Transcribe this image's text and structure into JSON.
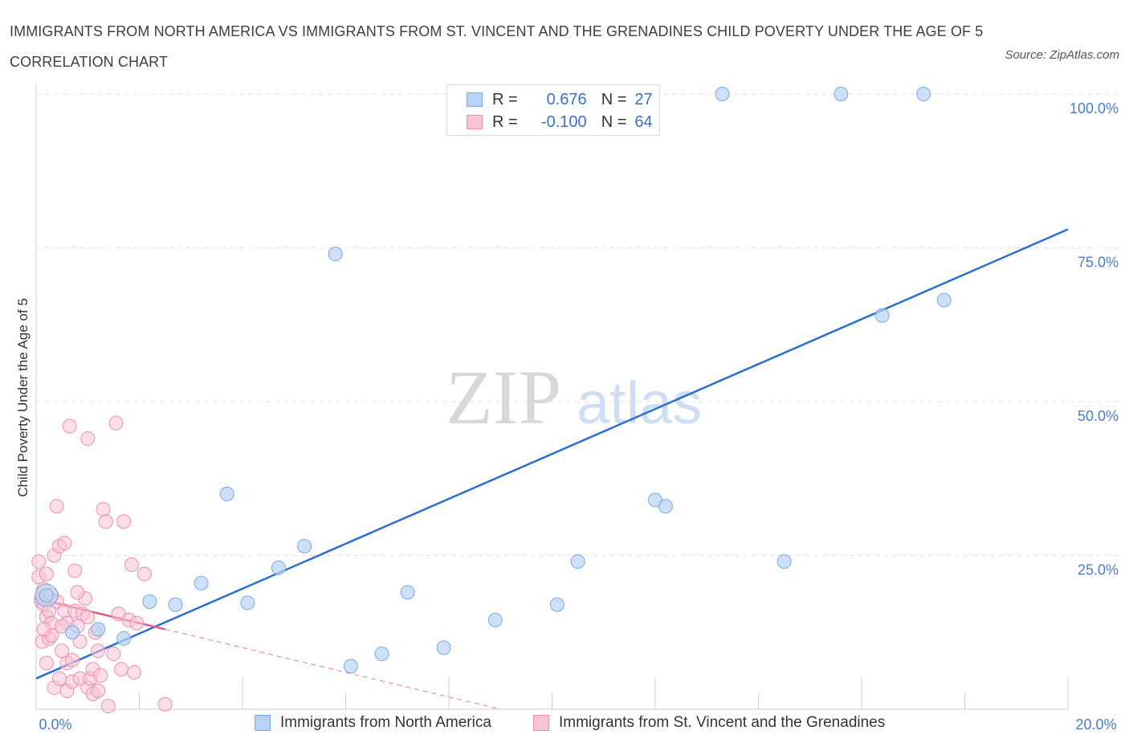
{
  "header": {
    "title": "IMMIGRANTS FROM NORTH AMERICA VS IMMIGRANTS FROM ST. VINCENT AND THE GRENADINES CHILD POVERTY UNDER THE AGE OF 5 CORRELATION CHART",
    "source": "Source: ZipAtlas.com"
  },
  "watermark": {
    "zip": "ZIP",
    "atlas": "atlas"
  },
  "legend": {
    "r_label": "R =",
    "n_label": "N =",
    "series1": {
      "r": "0.676",
      "n": "27"
    },
    "series2": {
      "r": "-0.100",
      "n": "64"
    }
  },
  "colors": {
    "blue_fill": "#b8d3f5",
    "blue_stroke": "#7aaae0",
    "blue_line": "#2a6fcf",
    "pink_fill": "#f8c3d4",
    "pink_stroke": "#ec8fae",
    "pink_line": "#e45a8a",
    "tick_text": "#4a7cc9",
    "grid": "#e0e0e0"
  },
  "chart_data": {
    "type": "scatter",
    "title": "IMMIGRANTS FROM NORTH AMERICA VS IMMIGRANTS FROM ST. VINCENT AND THE GRENADINES CHILD POVERTY UNDER THE AGE OF 5 CORRELATION CHART",
    "xlabel": "",
    "ylabel": "Child Poverty Under the Age of 5",
    "xlim": [
      0,
      20
    ],
    "ylim": [
      0,
      100
    ],
    "x_tick_labels": [
      "0.0%",
      "20.0%"
    ],
    "y_ticks": [
      25,
      50,
      75,
      100
    ],
    "y_tick_labels": [
      "25.0%",
      "50.0%",
      "75.0%",
      "100.0%"
    ],
    "series": [
      {
        "name": "Immigrants from North America",
        "color": "#b8d3f5",
        "points": [
          [
            0.2,
            18.5
          ],
          [
            0.7,
            12.5
          ],
          [
            1.2,
            13.0
          ],
          [
            1.7,
            11.5
          ],
          [
            2.2,
            17.5
          ],
          [
            2.7,
            17.0
          ],
          [
            3.2,
            20.5
          ],
          [
            3.7,
            35.0
          ],
          [
            4.1,
            17.3
          ],
          [
            4.7,
            23.0
          ],
          [
            5.2,
            26.5
          ],
          [
            5.8,
            74.0
          ],
          [
            6.1,
            7.0
          ],
          [
            6.7,
            9.0
          ],
          [
            7.2,
            19.0
          ],
          [
            7.9,
            10.0
          ],
          [
            8.9,
            14.5
          ],
          [
            10.1,
            17.0
          ],
          [
            10.5,
            24.0
          ],
          [
            12.0,
            34.0
          ],
          [
            12.2,
            33.0
          ],
          [
            13.3,
            100.0
          ],
          [
            14.5,
            24.0
          ],
          [
            15.6,
            100.0
          ],
          [
            16.4,
            64.0
          ],
          [
            17.2,
            100.0
          ],
          [
            17.6,
            66.5
          ]
        ],
        "trendline": {
          "x": [
            0,
            20
          ],
          "y": [
            5.0,
            78.0
          ]
        }
      },
      {
        "name": "Immigrants from St. Vincent and the Grenadines",
        "color": "#f8c3d4",
        "points": [
          [
            0.05,
            24.0
          ],
          [
            0.05,
            21.5
          ],
          [
            0.1,
            18.0
          ],
          [
            0.1,
            17.5
          ],
          [
            0.12,
            11.0
          ],
          [
            0.15,
            19.5
          ],
          [
            0.15,
            17.0
          ],
          [
            0.2,
            15.0
          ],
          [
            0.2,
            22.0
          ],
          [
            0.25,
            16.0
          ],
          [
            0.25,
            11.5
          ],
          [
            0.3,
            18.5
          ],
          [
            0.3,
            14.0
          ],
          [
            0.35,
            25.0
          ],
          [
            0.35,
            3.5
          ],
          [
            0.4,
            33.0
          ],
          [
            0.4,
            17.5
          ],
          [
            0.45,
            26.5
          ],
          [
            0.5,
            9.5
          ],
          [
            0.55,
            27.0
          ],
          [
            0.55,
            16.0
          ],
          [
            0.6,
            14.0
          ],
          [
            0.6,
            7.5
          ],
          [
            0.6,
            3.0
          ],
          [
            0.65,
            46.0
          ],
          [
            0.7,
            4.5
          ],
          [
            0.7,
            8.0
          ],
          [
            0.75,
            22.5
          ],
          [
            0.75,
            16.0
          ],
          [
            0.8,
            13.5
          ],
          [
            0.85,
            11.0
          ],
          [
            0.85,
            5.0
          ],
          [
            0.9,
            15.5
          ],
          [
            0.95,
            18.0
          ],
          [
            1.0,
            44.0
          ],
          [
            1.0,
            3.5
          ],
          [
            1.05,
            5.0
          ],
          [
            1.1,
            6.5
          ],
          [
            1.1,
            2.5
          ],
          [
            1.15,
            12.5
          ],
          [
            1.2,
            9.5
          ],
          [
            1.25,
            5.5
          ],
          [
            1.3,
            32.5
          ],
          [
            1.35,
            30.5
          ],
          [
            1.4,
            0.5
          ],
          [
            1.5,
            9.0
          ],
          [
            1.55,
            46.5
          ],
          [
            1.6,
            15.5
          ],
          [
            1.65,
            6.5
          ],
          [
            1.7,
            30.5
          ],
          [
            1.8,
            14.5
          ],
          [
            1.85,
            23.5
          ],
          [
            1.9,
            6.0
          ],
          [
            1.95,
            14.0
          ],
          [
            2.1,
            22.0
          ],
          [
            2.5,
            0.8
          ],
          [
            0.3,
            12.0
          ],
          [
            0.5,
            13.5
          ],
          [
            0.45,
            5.0
          ],
          [
            0.2,
            7.5
          ],
          [
            1.0,
            15.0
          ],
          [
            0.15,
            13.0
          ],
          [
            0.8,
            19.0
          ],
          [
            1.2,
            3.0
          ]
        ],
        "trendline": {
          "x": [
            0,
            2.5
          ],
          "y": [
            18.0,
            13.0
          ]
        },
        "trendline_dashed": {
          "x": [
            2.5,
            9.0
          ],
          "y": [
            13.0,
            0.0
          ]
        }
      }
    ],
    "legend_position": "top-center",
    "grid": true
  },
  "bottom_legend": {
    "item1": "Immigrants from North America",
    "item2": "Immigrants from St. Vincent and the Grenadines"
  }
}
